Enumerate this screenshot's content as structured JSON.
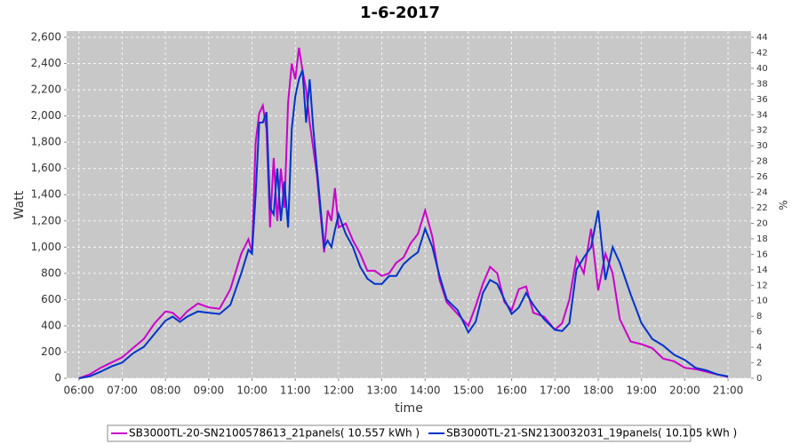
{
  "chart_data": {
    "type": "line",
    "title": "1-6-2017",
    "x_label": "time",
    "y_label": "Watt",
    "y2_label": "%",
    "x": [
      "06:00",
      "06:15",
      "06:30",
      "06:45",
      "07:00",
      "07:15",
      "07:30",
      "07:45",
      "08:00",
      "08:10",
      "08:20",
      "08:30",
      "08:45",
      "09:00",
      "09:15",
      "09:30",
      "09:45",
      "09:55",
      "10:00",
      "10:05",
      "10:10",
      "10:15",
      "10:20",
      "10:25",
      "10:30",
      "10:35",
      "10:40",
      "10:45",
      "10:50",
      "10:55",
      "11:00",
      "11:05",
      "11:10",
      "11:15",
      "11:20",
      "11:25",
      "11:30",
      "11:35",
      "11:40",
      "11:45",
      "11:50",
      "11:55",
      "12:00",
      "12:10",
      "12:20",
      "12:30",
      "12:40",
      "12:50",
      "13:00",
      "13:10",
      "13:20",
      "13:30",
      "13:40",
      "13:50",
      "14:00",
      "14:10",
      "14:20",
      "14:30",
      "14:45",
      "15:00",
      "15:10",
      "15:20",
      "15:30",
      "15:40",
      "15:50",
      "16:00",
      "16:10",
      "16:20",
      "16:30",
      "16:45",
      "17:00",
      "17:10",
      "17:20",
      "17:30",
      "17:40",
      "17:50",
      "18:00",
      "18:10",
      "18:20",
      "18:30",
      "18:45",
      "19:00",
      "19:15",
      "19:30",
      "19:45",
      "20:00",
      "20:15",
      "20:30",
      "20:45",
      "21:00"
    ],
    "series": [
      {
        "name": "SB3000TL-20-SN2100578613_21panels( 10.557 kWh )",
        "color": "#cc00cc",
        "values": [
          0,
          30,
          80,
          120,
          160,
          230,
          300,
          420,
          510,
          500,
          450,
          510,
          570,
          540,
          530,
          680,
          950,
          1060,
          960,
          1800,
          2020,
          2080,
          1900,
          1150,
          1680,
          1200,
          1600,
          1300,
          2100,
          2400,
          2280,
          2520,
          2350,
          2200,
          1950,
          1750,
          1550,
          1250,
          960,
          1280,
          1200,
          1450,
          1150,
          1180,
          1050,
          950,
          820,
          820,
          780,
          800,
          880,
          920,
          1030,
          1100,
          1280,
          1080,
          750,
          580,
          490,
          400,
          550,
          720,
          850,
          800,
          580,
          520,
          680,
          700,
          500,
          470,
          370,
          420,
          600,
          920,
          800,
          1140,
          670,
          950,
          800,
          450,
          280,
          260,
          230,
          150,
          130,
          80,
          70,
          50,
          30,
          10
        ]
      },
      {
        "name": "SB3000TL-21-SN2130032031_19panels( 10.105 kWh )",
        "color": "#0033cc",
        "values": [
          0,
          15,
          50,
          90,
          120,
          190,
          240,
          340,
          440,
          470,
          430,
          470,
          510,
          500,
          490,
          560,
          800,
          980,
          950,
          1400,
          1950,
          1950,
          2030,
          1300,
          1250,
          1600,
          1200,
          1500,
          1150,
          1900,
          2150,
          2280,
          2350,
          1950,
          2280,
          1900,
          1600,
          1300,
          1000,
          1050,
          1000,
          1130,
          1250,
          1100,
          1000,
          850,
          760,
          720,
          720,
          780,
          780,
          870,
          920,
          960,
          1140,
          1000,
          780,
          600,
          520,
          350,
          430,
          650,
          750,
          720,
          600,
          490,
          540,
          650,
          560,
          450,
          370,
          360,
          420,
          830,
          920,
          1000,
          1280,
          750,
          1000,
          880,
          640,
          420,
          300,
          250,
          180,
          140,
          80,
          60,
          30,
          15
        ]
      }
    ],
    "xlim": [
      "05:43",
      "21:32"
    ],
    "xticks": [
      "06:00",
      "07:00",
      "08:00",
      "09:00",
      "10:00",
      "11:00",
      "12:00",
      "13:00",
      "14:00",
      "15:00",
      "16:00",
      "17:00",
      "18:00",
      "19:00",
      "20:00",
      "21:00"
    ],
    "ylim": [
      0,
      2600
    ],
    "yticks": [
      0,
      200,
      400,
      600,
      800,
      {
        "value": 1000,
        "label": "1,000"
      },
      {
        "value": 1200,
        "label": "1,200"
      },
      {
        "value": 1400,
        "label": "1,400"
      },
      {
        "value": 1600,
        "label": "1,600"
      },
      {
        "value": 1800,
        "label": "1,800"
      },
      {
        "value": 2000,
        "label": "2,000"
      },
      {
        "value": 2200,
        "label": "2,200"
      },
      {
        "value": 2400,
        "label": "2,400"
      },
      {
        "value": 2600,
        "label": "2,600"
      }
    ],
    "y2lim": [
      0,
      44
    ],
    "y2ticks": [
      0,
      2,
      4,
      6,
      8,
      10,
      12,
      14,
      16,
      18,
      20,
      22,
      24,
      26,
      28,
      30,
      32,
      34,
      36,
      38,
      40,
      42,
      44
    ],
    "grid": true
  }
}
